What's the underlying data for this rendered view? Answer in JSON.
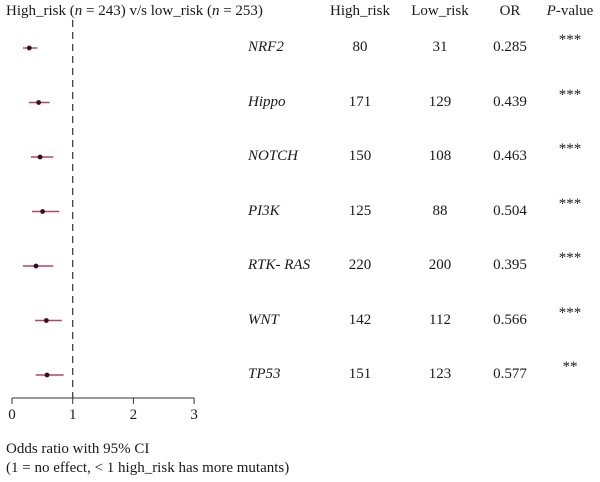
{
  "header": {
    "title_part1": "High_risk (",
    "title_n1_label": "n",
    "title_n1_value": " = 243) v/s low_risk (",
    "title_n2_label": "n",
    "title_n2_value": " = 253)",
    "col_high": "High_risk",
    "col_low": "Low_risk",
    "col_or": "OR",
    "col_p_italic": "P",
    "col_p_rest": "-value"
  },
  "footer": {
    "xlabel_line1": "Odds ratio with 95% CI",
    "xlabel_line2": "(1 = no effect, < 1 high_risk has more mutants)"
  },
  "chart_data": {
    "type": "forest",
    "xlim": [
      0,
      3
    ],
    "xticks": [
      "0",
      "1",
      "2",
      "3"
    ],
    "reference_line": 1,
    "point_color": "#3a0f1c",
    "ci_color": "#b0476b",
    "rows": [
      {
        "pathway": "NRF2",
        "high": "80",
        "low": "31",
        "or": 0.285,
        "or_text": "0.285",
        "ci": [
          0.18,
          0.42
        ],
        "p": "***"
      },
      {
        "pathway": "Hippo",
        "high": "171",
        "low": "129",
        "or": 0.439,
        "or_text": "0.439",
        "ci": [
          0.28,
          0.62
        ],
        "p": "***"
      },
      {
        "pathway": "NOTCH",
        "high": "150",
        "low": "108",
        "or": 0.463,
        "or_text": "0.463",
        "ci": [
          0.31,
          0.68
        ],
        "p": "***"
      },
      {
        "pathway": "PI3K",
        "high": "125",
        "low": "88",
        "or": 0.504,
        "or_text": "0.504",
        "ci": [
          0.33,
          0.78
        ],
        "p": "***"
      },
      {
        "pathway": "RTK- RAS",
        "high": "220",
        "low": "200",
        "or": 0.395,
        "or_text": "0.395",
        "ci": [
          0.18,
          0.68
        ],
        "p": "***"
      },
      {
        "pathway": "WNT",
        "high": "142",
        "low": "112",
        "or": 0.566,
        "or_text": "0.566",
        "ci": [
          0.38,
          0.82
        ],
        "p": "***"
      },
      {
        "pathway": "TP53",
        "high": "151",
        "low": "123",
        "or": 0.577,
        "or_text": "0.577",
        "ci": [
          0.39,
          0.85
        ],
        "p": "**"
      }
    ]
  }
}
